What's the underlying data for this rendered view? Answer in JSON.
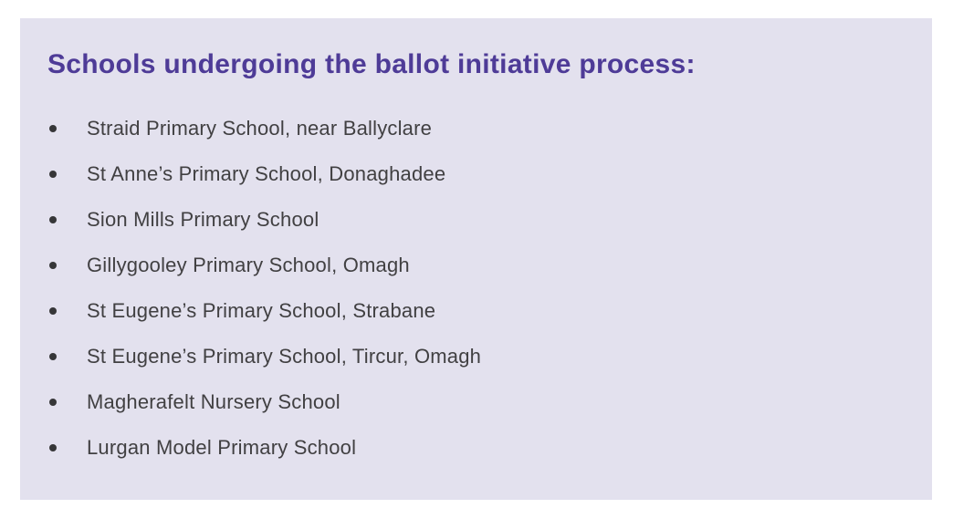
{
  "colors": {
    "page_bg": "#ffffff",
    "card_bg": "#e3e1ee",
    "heading_color": "#4e3b97",
    "text_color": "#414042",
    "bullet_color": "#363638"
  },
  "card": {
    "heading": "Schools undergoing the ballot initiative process:"
  },
  "bullets": [
    "Straid Primary School, near Ballyclare",
    "St Anne’s Primary School, Donaghadee",
    "Sion Mills Primary School",
    "Gillygooley Primary School, Omagh",
    "St Eugene’s Primary School, Strabane",
    "St Eugene’s Primary School, Tircur, Omagh",
    "Magherafelt Nursery School",
    "Lurgan Model Primary School"
  ]
}
